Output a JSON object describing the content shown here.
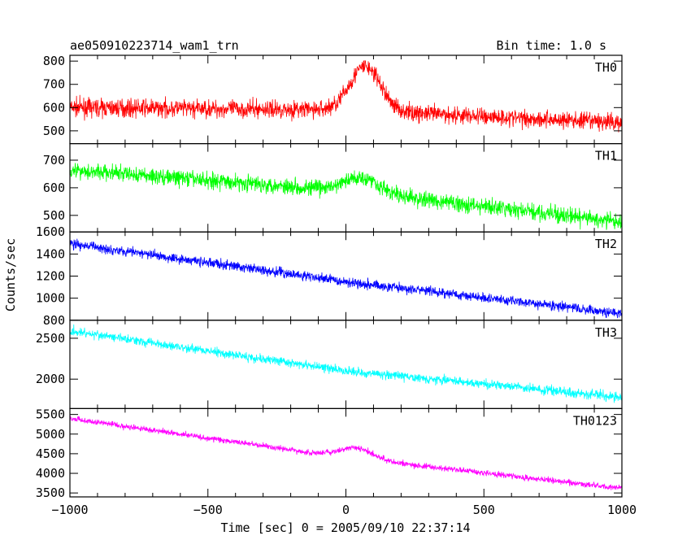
{
  "header": {
    "title": "ae050910223714_wam1_trn",
    "bin_time": "Bin time: 1.0 s"
  },
  "chart_data": {
    "type": "line",
    "title": "ae050910223714_wam1_trn",
    "xlabel": "Time [sec] 0 = 2005/09/10 22:37:14",
    "ylabel": "Counts/sec",
    "xlim": [
      -1000,
      1000
    ],
    "x_ticks": [
      -1000,
      -500,
      0,
      500,
      1000
    ],
    "grid": false,
    "panels": [
      {
        "name": "TH0",
        "color": "#ff0000",
        "ylim": [
          445,
          825
        ],
        "y_ticks": [
          500,
          600,
          700,
          800
        ],
        "trend": [
          [
            -1000,
            600
          ],
          [
            0,
            590
          ],
          [
            1000,
            535
          ]
        ],
        "peak": {
          "center": 70,
          "amplitude": 190,
          "sigma": 55
        },
        "noise": 38
      },
      {
        "name": "TH1",
        "color": "#00ff00",
        "ylim": [
          440,
          760
        ],
        "y_ticks": [
          500,
          600,
          700
        ],
        "trend": [
          [
            -1000,
            665
          ],
          [
            0,
            590
          ],
          [
            1000,
            475
          ]
        ],
        "peak": {
          "center": 60,
          "amplitude": 55,
          "sigma": 60
        },
        "noise": 30
      },
      {
        "name": "TH2",
        "color": "#0000ff",
        "ylim": [
          800,
          1600
        ],
        "y_ticks": [
          800,
          1000,
          1200,
          1400,
          1600
        ],
        "trend": [
          [
            -1000,
            1495
          ],
          [
            0,
            1150
          ],
          [
            1000,
            860
          ]
        ],
        "peak": null,
        "noise": 45
      },
      {
        "name": "TH3",
        "color": "#00ffff",
        "ylim": [
          1640,
          2720
        ],
        "y_ticks": [
          2000,
          2500
        ],
        "trend": [
          [
            -1000,
            2590
          ],
          [
            0,
            2100
          ],
          [
            1000,
            1780
          ]
        ],
        "peak": null,
        "noise": 55
      },
      {
        "name": "TH0123",
        "color": "#ff00ff",
        "ylim": [
          3400,
          5650
        ],
        "y_ticks": [
          3500,
          4000,
          4500,
          5000,
          5500
        ],
        "trend": [
          [
            -1000,
            5400
          ],
          [
            0,
            4400
          ],
          [
            1000,
            3620
          ]
        ],
        "peak": {
          "center": 40,
          "amplitude": 280,
          "sigma": 60
        },
        "noise": 75
      }
    ]
  }
}
